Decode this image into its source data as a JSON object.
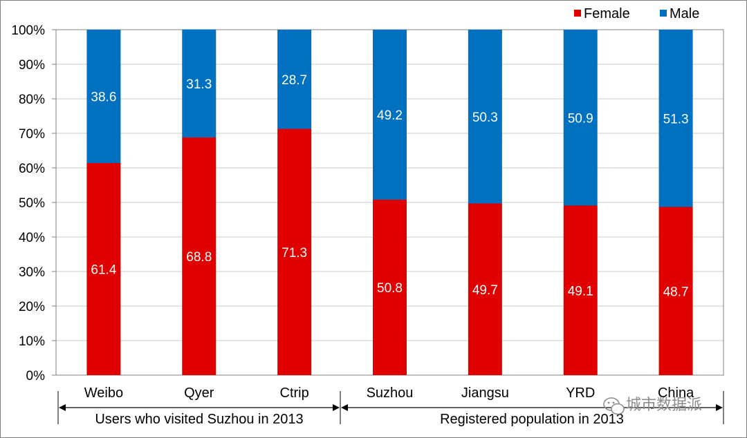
{
  "chart_data": {
    "type": "bar",
    "stacked": true,
    "percent_scale": true,
    "categories": [
      "Weibo",
      "Qyer",
      "Ctrip",
      "Suzhou",
      "Jiangsu",
      "YRD",
      "China"
    ],
    "series": [
      {
        "name": "Female",
        "color": "#e00000",
        "values": [
          61.4,
          68.8,
          71.3,
          50.8,
          49.7,
          49.1,
          48.7
        ]
      },
      {
        "name": "Male",
        "color": "#0070c0",
        "values": [
          38.6,
          31.3,
          28.7,
          49.2,
          50.3,
          50.9,
          51.3
        ]
      }
    ],
    "ylim": [
      0,
      100
    ],
    "yticks": [
      "0%",
      "10%",
      "20%",
      "30%",
      "40%",
      "50%",
      "60%",
      "70%",
      "80%",
      "90%",
      "100%"
    ],
    "grid": true,
    "legend_position": "top-right",
    "groups": [
      {
        "label": "Users who visited Suzhou in 2013",
        "categories": [
          "Weibo",
          "Qyer",
          "Ctrip"
        ]
      },
      {
        "label": "Registered population in 2013",
        "categories": [
          "Suzhou",
          "Jiangsu",
          "YRD",
          "China"
        ]
      }
    ]
  },
  "watermark": {
    "text": "城市数据派",
    "icon": "wechat-icon"
  }
}
